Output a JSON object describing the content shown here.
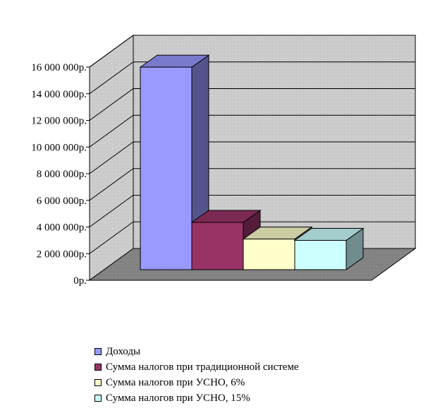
{
  "chart_data": {
    "type": "bar",
    "style": "3d-clustered",
    "categories": [
      ""
    ],
    "series": [
      {
        "name": "Доходы",
        "values": [
          15200000
        ],
        "color": "#9999ff"
      },
      {
        "name": "Сумма налогов при традиционной системе",
        "values": [
          3550000
        ],
        "color": "#993366"
      },
      {
        "name": "Сумма налогов при УСНО, 6%",
        "values": [
          2300000
        ],
        "color": "#ffffcc"
      },
      {
        "name": "Сумма налогов при УСНО, 15%",
        "values": [
          2200000
        ],
        "color": "#ccffff"
      }
    ],
    "ylim": [
      0,
      16000000
    ],
    "yticks": [
      0,
      2000000,
      4000000,
      6000000,
      8000000,
      10000000,
      12000000,
      14000000,
      16000000
    ],
    "ytick_labels": [
      "0р.",
      "2 000 000р.",
      "4 000 000р.",
      "6 000 000р.",
      "8 000 000р.",
      "10 000 000р.",
      "12 000 000р.",
      "14 000 000р.",
      "16 000 000р."
    ],
    "grid": true,
    "legend_position": "bottom",
    "colors": {
      "wall": "#c0c0c0",
      "floor": "#808080",
      "grid": "#000000"
    }
  }
}
